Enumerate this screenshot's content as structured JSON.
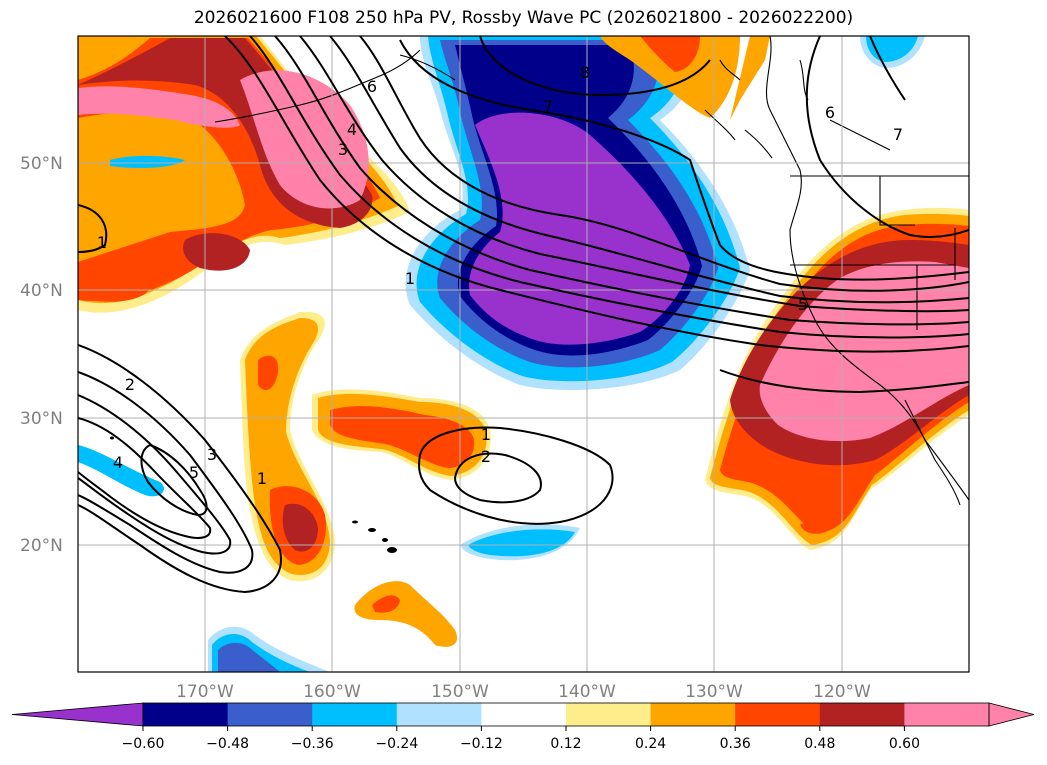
{
  "title": "2026021600 F108 250 hPa PV, Rossby Wave PC (2026021800 - 2026022200)",
  "lat_labels": [
    "50°N",
    "40°N",
    "30°N",
    "20°N"
  ],
  "lon_labels": [
    "170°W",
    "160°W",
    "150°W",
    "140°W",
    "130°W",
    "120°W"
  ],
  "colorbar": {
    "ticks": [
      "−0.60",
      "−0.48",
      "−0.36",
      "−0.24",
      "−0.12",
      "0.12",
      "0.24",
      "0.36",
      "0.48",
      "0.60"
    ],
    "colors": [
      "#9932CC",
      "#00008B",
      "#3A5FCD",
      "#00BFFF",
      "#B0E2FF",
      "#FFFFFF",
      "#FFEC8B",
      "#FFA500",
      "#FF4500",
      "#B22222",
      "#FF82AB",
      "#FF82AB"
    ]
  },
  "contour_labels": [
    "1",
    "2",
    "3",
    "4",
    "5",
    "6",
    "7",
    "8",
    "1",
    "2",
    "3",
    "4",
    "5",
    "1",
    "2",
    "1",
    "5",
    "6",
    "7"
  ]
}
